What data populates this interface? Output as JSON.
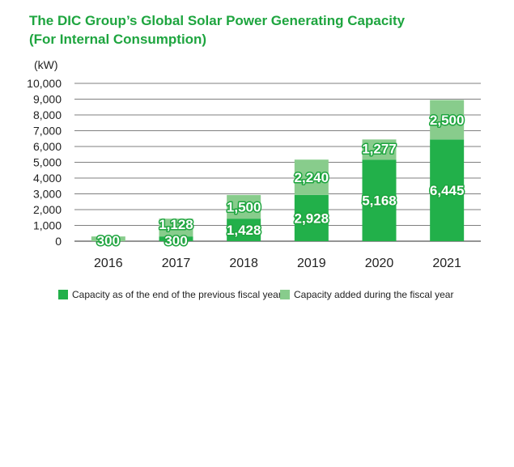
{
  "title_line1": "The DIC Group’s Global Solar Power Generating Capacity",
  "title_line2": "(For Internal Consumption)",
  "colors": {
    "title": "#1ea53f",
    "previous": "#22b04a",
    "added": "#88cc8c",
    "label_outline": "#1ea53f",
    "grid": "#555555"
  },
  "chart_data": {
    "type": "bar",
    "stacked": true,
    "unit": "(kW)",
    "categories": [
      "2016",
      "2017",
      "2018",
      "2019",
      "2020",
      "2021"
    ],
    "series": [
      {
        "name": "Capacity as of the end of the previous fiscal year",
        "values": [
          0,
          300,
          1428,
          2928,
          5168,
          6445
        ]
      },
      {
        "name": "Capacity added during the fiscal year",
        "values": [
          300,
          1128,
          1500,
          2240,
          1277,
          2500
        ]
      }
    ],
    "data_labels": {
      "previous": [
        "",
        "300",
        "1,428",
        "2,928",
        "5,168",
        "6,445"
      ],
      "added": [
        "300",
        "1,128",
        "1,500",
        "2,240",
        "1,277",
        "2,500"
      ]
    },
    "yticks": [
      "0",
      "1,000",
      "2,000",
      "3,000",
      "4,000",
      "5,000",
      "6,000",
      "7,000",
      "8,000",
      "9,000",
      "10,000"
    ],
    "ylim": [
      0,
      10000
    ],
    "grid": true,
    "legend_position": "bottom"
  }
}
